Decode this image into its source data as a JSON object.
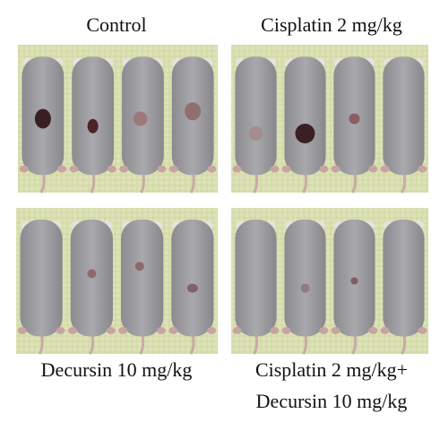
{
  "panels": [
    {
      "label": [
        "Control"
      ]
    },
    {
      "label": [
        "Cisplatin 2 mg/kg"
      ]
    },
    {
      "label": [
        "Decursin 10 mg/kg"
      ]
    },
    {
      "label": [
        "Cisplatin 2 mg/kg+",
        "Decursin 10 mg/kg"
      ]
    }
  ]
}
